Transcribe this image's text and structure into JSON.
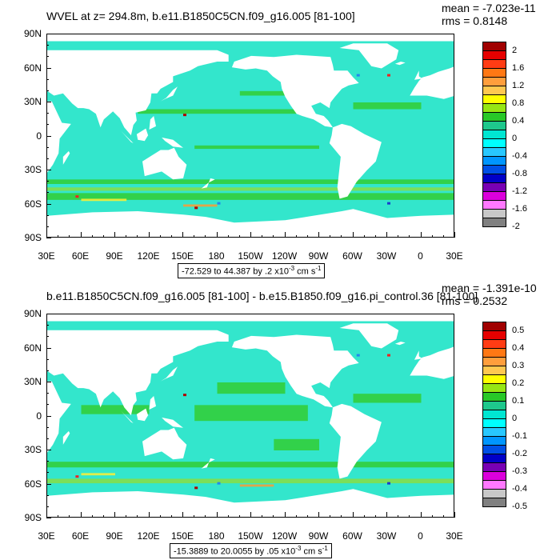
{
  "lat_labels": [
    "90N",
    "60N",
    "30N",
    "0",
    "30S",
    "60S",
    "90S"
  ],
  "lon_labels": [
    "30E",
    "60E",
    "90E",
    "120E",
    "150E",
    "180",
    "150W",
    "120W",
    "90W",
    "60W",
    "30W",
    "0",
    "30E"
  ],
  "colors": {
    "ocean_base": "#33e6cc",
    "green": "#33cc33",
    "light_green": "#88dd44",
    "yellow": "#ffee33",
    "orange": "#ff9933",
    "red": "#ee2222",
    "dark_red": "#b00000",
    "blue": "#2288ee",
    "dark_blue": "#1a3ccc",
    "land": "#ffffff"
  },
  "panels": [
    {
      "title": "WVEL at z= 294.8m, b.e11.B1850C5CN.f09_g16.005 [81-100]",
      "mean_text": "mean = -7.023e-11",
      "rms_text": "rms = 0.8148",
      "range_main": "-72.529 to 44.387 by .2 x10",
      "range_exp": "-3",
      "range_unit": " cm s",
      "range_unit_exp": "-1",
      "legend": {
        "labels": [
          "2",
          "1.6",
          "1.2",
          "0.8",
          "0.4",
          "0",
          "-0.4",
          "-0.8",
          "-1.2",
          "-1.6",
          "-2"
        ],
        "colors": [
          "#a00000",
          "#e60000",
          "#ff3c14",
          "#ff7814",
          "#ff9e3c",
          "#ffc850",
          "#ffff00",
          "#96e614",
          "#28c828",
          "#1ec88c",
          "#00e6d2",
          "#00ffff",
          "#28c8ff",
          "#0096ff",
          "#0050e6",
          "#0000c8",
          "#7800b4",
          "#dc00dc",
          "#ff78ff",
          "#c8c8c8",
          "#808080"
        ]
      }
    },
    {
      "title": "b.e11.B1850C5CN.f09_g16.005 [81-100] - b.e15.B1850.f09_g16.pi_control.36 [81-100]",
      "mean_text": "mean = -1.391e-10",
      "rms_text": "rms = 0.2532",
      "range_main": "-15.3889 to 20.0055 by .05 x10",
      "range_exp": "-3",
      "range_unit": " cm s",
      "range_unit_exp": "-1",
      "legend": {
        "labels": [
          "0.5",
          "0.4",
          "0.3",
          "0.2",
          "0.1",
          "0",
          "-0.1",
          "-0.2",
          "-0.3",
          "-0.4",
          "-0.5"
        ],
        "colors": [
          "#a00000",
          "#e60000",
          "#ff3c14",
          "#ff7814",
          "#ff9e3c",
          "#ffc850",
          "#ffff00",
          "#96e614",
          "#28c828",
          "#1ec88c",
          "#00e6d2",
          "#00ffff",
          "#28c8ff",
          "#0096ff",
          "#0050e6",
          "#0000c8",
          "#7800b4",
          "#dc00dc",
          "#ff78ff",
          "#c8c8c8",
          "#808080"
        ]
      }
    }
  ]
}
